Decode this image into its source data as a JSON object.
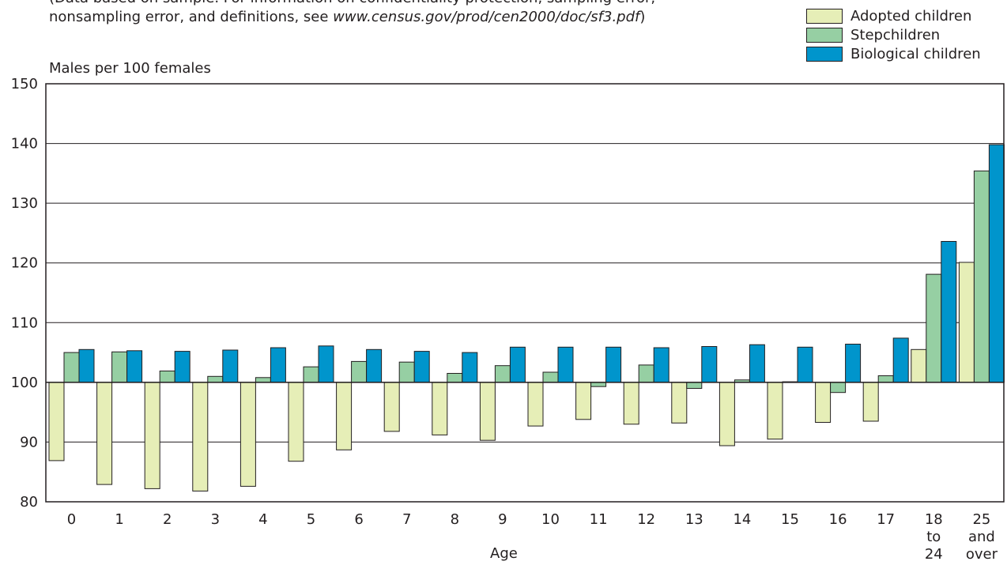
{
  "note": {
    "line1": "(Data based on sample.  For information on confidentiality protection, sampling error,",
    "line2_prefix": "nonsampling error, and definitions, see ",
    "line2_url": "www.census.gov/prod/cen2000/doc/sf3.pdf",
    "line2_suffix": ")"
  },
  "chart_data": {
    "type": "bar",
    "ylabel": "Males per 100 females",
    "xlabel": "Age",
    "ylim": [
      80,
      150
    ],
    "yticks": [
      80,
      90,
      100,
      110,
      120,
      130,
      140,
      150
    ],
    "baseline": 100,
    "grid": true,
    "legend_position": "top-right",
    "categories": [
      "0",
      "1",
      "2",
      "3",
      "4",
      "5",
      "6",
      "7",
      "8",
      "9",
      "10",
      "11",
      "12",
      "13",
      "14",
      "15",
      "16",
      "17",
      "18 to 24",
      "25 and over"
    ],
    "category_label_lines": [
      [
        "0"
      ],
      [
        "1"
      ],
      [
        "2"
      ],
      [
        "3"
      ],
      [
        "4"
      ],
      [
        "5"
      ],
      [
        "6"
      ],
      [
        "7"
      ],
      [
        "8"
      ],
      [
        "9"
      ],
      [
        "10"
      ],
      [
        "11"
      ],
      [
        "12"
      ],
      [
        "13"
      ],
      [
        "14"
      ],
      [
        "15"
      ],
      [
        "16"
      ],
      [
        "17"
      ],
      [
        "18",
        "to",
        "24"
      ],
      [
        "25",
        "and",
        "over"
      ]
    ],
    "series": [
      {
        "name": "Adopted children",
        "color": "#e6eeb7",
        "values": [
          86.9,
          82.9,
          82.2,
          81.8,
          82.6,
          86.8,
          88.7,
          91.8,
          91.2,
          90.3,
          92.7,
          93.8,
          93.0,
          93.2,
          89.4,
          90.5,
          93.3,
          93.5,
          105.5,
          120.1
        ]
      },
      {
        "name": "Stepchildren",
        "color": "#96cfa3",
        "values": [
          105.0,
          105.1,
          101.9,
          101.0,
          100.8,
          102.6,
          103.5,
          103.4,
          101.5,
          102.8,
          101.7,
          99.3,
          102.9,
          99.0,
          100.4,
          100.1,
          98.3,
          101.1,
          118.1,
          135.4
        ]
      },
      {
        "name": "Biological children",
        "color": "#0095cc",
        "values": [
          105.5,
          105.3,
          105.2,
          105.4,
          105.8,
          106.1,
          105.5,
          105.2,
          105.0,
          105.9,
          105.9,
          105.9,
          105.8,
          106.0,
          106.3,
          105.9,
          106.4,
          107.4,
          123.6,
          139.8
        ]
      }
    ]
  }
}
